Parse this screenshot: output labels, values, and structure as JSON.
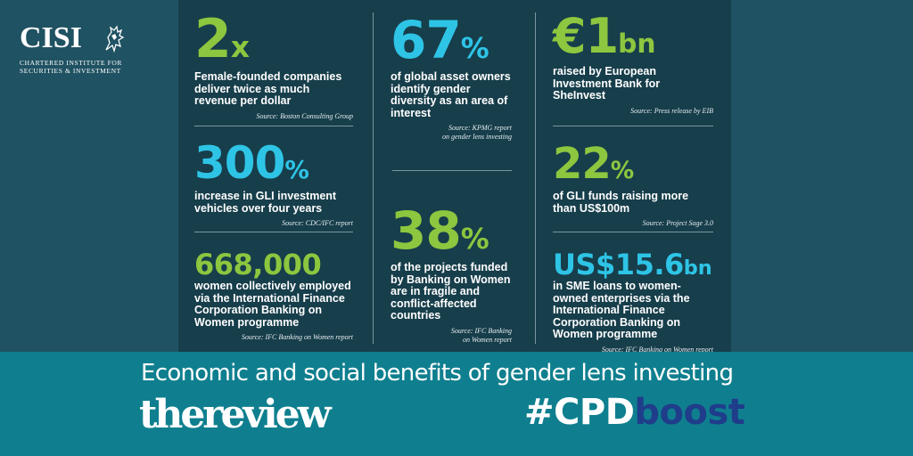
{
  "logo": {
    "name": "CISI",
    "line1": "CHARTERED INSTITUTE FOR",
    "line2": "SECURITIES & INVESTMENT"
  },
  "stats": {
    "s1": {
      "value": "2",
      "unit": "x",
      "desc": "Female-founded companies deliver twice as much revenue per dollar",
      "source": "Source: Boston Consulting Group"
    },
    "s2": {
      "value": "300",
      "unit": "%",
      "desc": "increase in GLI investment vehicles over four years",
      "source": "Source: CDC/IFC report"
    },
    "s3": {
      "value": "668,000",
      "unit": "",
      "desc": "women collectively employed via the International Finance Corporation Banking on Women programme",
      "source": "Source: IFC Banking on Women report"
    },
    "s4": {
      "value": "67",
      "unit": "%",
      "desc": "of global asset owners identify gender diversity as an area of interest",
      "source_l1": "Source: KPMG report",
      "source_l2": "on gender lens investing"
    },
    "s5": {
      "value": "38",
      "unit": "%",
      "desc": "of the projects funded by Banking on Women are in fragile and conflict-affected countries",
      "source_l1": "Source: IFC Banking",
      "source_l2": "on Women report"
    },
    "s6": {
      "value": "€1",
      "unit": "bn",
      "desc": "raised by European Investment Bank for SheInvest",
      "source": "Source: Press release by EIB"
    },
    "s7": {
      "value": "22",
      "unit": "%",
      "desc": "of GLI funds raising more than US$100m",
      "source": "Source: Project Sage 3.0"
    },
    "s8": {
      "value": "US$15.6",
      "unit": "bn",
      "desc": "in SME loans to women-owned enterprises via the International Finance Corporation Banking on Women programme",
      "source": "Source: IFC Banking on Women report"
    }
  },
  "band": {
    "headline": "Economic and social benefits of gender lens investing",
    "publication": "thereview",
    "hashtag_a": "#CPD",
    "hashtag_b": "boost"
  },
  "colors": {
    "green": "#8dc63f",
    "cyan": "#2ec4e6",
    "band": "#0f7f8f",
    "panel": "#173e4b",
    "hashtag_accent": "#1f3d8a"
  }
}
